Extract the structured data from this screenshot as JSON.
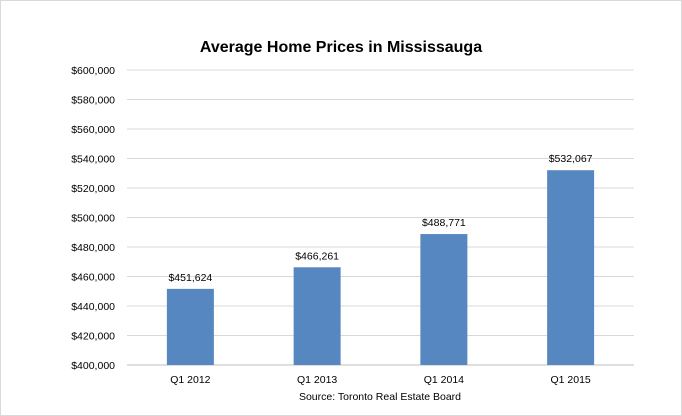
{
  "chart_data": {
    "type": "bar",
    "title": "Average Home Prices in Mississauga",
    "xlabel": "Source: Toronto Real Estate Board",
    "ylabel": "",
    "categories": [
      "Q1 2012",
      "Q1 2013",
      "Q1 2014",
      "Q1 2015"
    ],
    "values": [
      451624,
      466261,
      488771,
      532067
    ],
    "data_labels": [
      "$451,624",
      "$466,261",
      "$488,771",
      "$532,067"
    ],
    "ylim": [
      400000,
      600000
    ],
    "y_ticks": [
      "$400,000",
      "$420,000",
      "$440,000",
      "$460,000",
      "$480,000",
      "$500,000",
      "$520,000",
      "$540,000",
      "$560,000",
      "$580,000",
      "$600,000"
    ],
    "grid": true,
    "legend": "none",
    "bar_color": "#5787C1",
    "grid_color": "#D9D9D9"
  }
}
